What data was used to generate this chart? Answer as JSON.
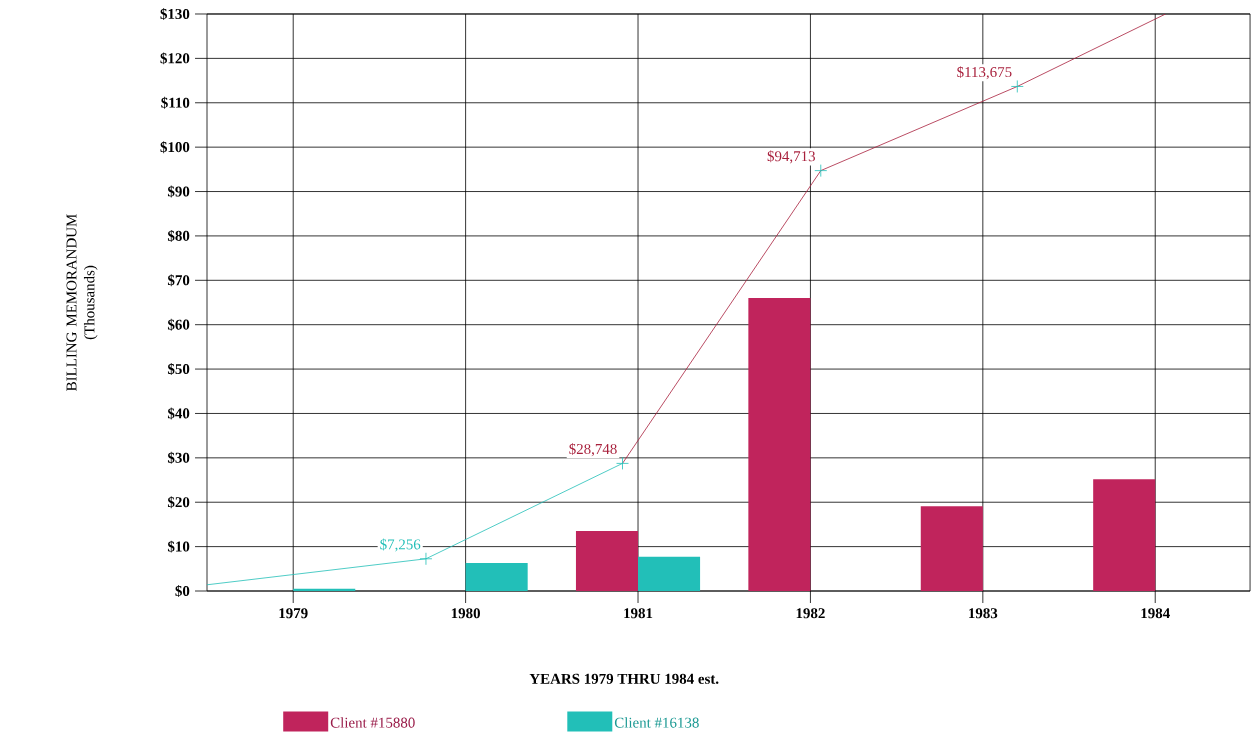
{
  "chart_data": {
    "type": "bar",
    "xlabel": "YEARS 1979 THRU 1984 est.",
    "ylabel": "BILLING MEMORANDUM (Thousands)",
    "x": [
      1979,
      1980,
      1981,
      1982,
      1983,
      1984
    ],
    "xlim": [
      1978.5,
      1984.55
    ],
    "xticks": [
      1979,
      1980,
      1981,
      1982,
      1983,
      1984
    ],
    "ylim": [
      0,
      130
    ],
    "yticks": [
      {
        "value": 0,
        "label": "$0"
      },
      {
        "value": 10,
        "label": "$10"
      },
      {
        "value": 20,
        "label": "$20"
      },
      {
        "value": 30,
        "label": "$30"
      },
      {
        "value": 40,
        "label": "$40"
      },
      {
        "value": 50,
        "label": "$50"
      },
      {
        "value": 60,
        "label": "$60"
      },
      {
        "value": 70,
        "label": "$70"
      },
      {
        "value": 80,
        "label": "$80"
      },
      {
        "value": 90,
        "label": "$90"
      },
      {
        "value": 100,
        "label": "$100"
      },
      {
        "value": 110,
        "label": "$110"
      },
      {
        "value": 120,
        "label": "$120"
      },
      {
        "value": 130,
        "label": "$130"
      }
    ],
    "grid": true,
    "legend": "bottom",
    "annotations": [
      {
        "text": "$7,256",
        "x": 1979.77,
        "y": 7.256
      },
      {
        "text": "$28,748",
        "x": 1980.91,
        "y": 28.748
      },
      {
        "text": "$94,713",
        "x": 1982.06,
        "y": 94.713
      },
      {
        "text": "$113,675",
        "x": 1983.2,
        "y": 113.675
      }
    ],
    "series": [
      {
        "name": "Client #15880",
        "color": "#c0245c",
        "values": [
          null,
          null,
          13.5,
          66,
          19.1,
          25.2
        ]
      },
      {
        "name": "Client #16138",
        "color": "#22bfb8",
        "values": [
          0.5,
          6.3,
          7.7,
          null,
          null,
          null
        ]
      },
      {
        "type": "line",
        "color": "#22bfb8",
        "x": [
          1978.5,
          1979.77,
          1980.91
        ],
        "values": [
          1.4,
          7.256,
          28.748
        ]
      },
      {
        "type": "line",
        "color": "#a8203c",
        "x": [
          1980.91,
          1982.06,
          1983.2,
          1984.06
        ],
        "values": [
          28.748,
          94.713,
          113.675,
          130
        ]
      },
      {
        "type": "scatter",
        "color": "#22bfb8",
        "marker": "cross",
        "x": [
          1979.77,
          1980.91,
          1982.06,
          1983.2
        ],
        "values": [
          7.256,
          28.748,
          94.713,
          113.675
        ]
      }
    ]
  }
}
